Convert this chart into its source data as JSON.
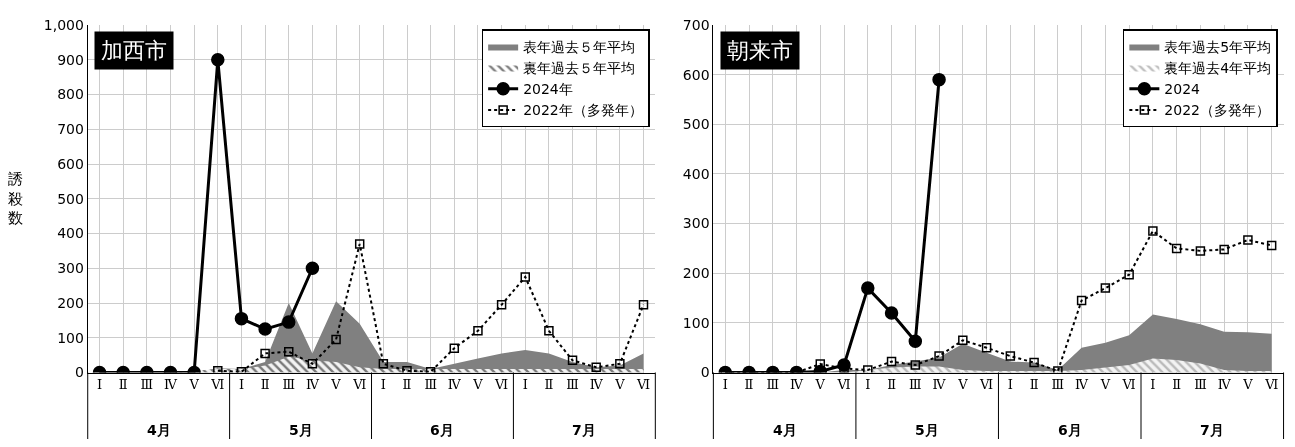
{
  "chart_data": [
    {
      "type": "line",
      "title": "加西市",
      "ylabel": "誘殺数",
      "categories": [
        "Ⅰ",
        "Ⅱ",
        "Ⅲ",
        "Ⅳ",
        "Ⅴ",
        "Ⅵ",
        "Ⅰ",
        "Ⅱ",
        "Ⅲ",
        "Ⅳ",
        "Ⅴ",
        "Ⅵ",
        "Ⅰ",
        "Ⅱ",
        "Ⅲ",
        "Ⅳ",
        "Ⅴ",
        "Ⅵ",
        "Ⅰ",
        "Ⅱ",
        "Ⅲ",
        "Ⅳ",
        "Ⅴ",
        "Ⅵ"
      ],
      "annotations": [
        "4月",
        "5月",
        "6月",
        "7月"
      ],
      "ylim": [
        0,
        1000
      ],
      "yticks": [
        0,
        100,
        200,
        300,
        400,
        500,
        600,
        700,
        800,
        900,
        {
          "value": 1000,
          "label": "1,000"
        }
      ],
      "grid": true,
      "legend": "top right",
      "series": [
        {
          "name": "表年過去５年平均",
          "type": "area",
          "color": "#808080",
          "values": [
            0,
            0,
            0,
            0,
            0,
            12,
            10,
            30,
            200,
            55,
            205,
            140,
            30,
            30,
            10,
            25,
            40,
            55,
            65,
            55,
            30,
            15,
            20,
            55
          ]
        },
        {
          "name": "裏年過去５年平均",
          "type": "area",
          "color": "#000000",
          "values": [
            0,
            0,
            0,
            0,
            5,
            10,
            10,
            20,
            45,
            35,
            30,
            15,
            10,
            10,
            10,
            10,
            10,
            10,
            10,
            10,
            10,
            10,
            10,
            10
          ]
        },
        {
          "name": "2024年",
          "color": "#000000",
          "marker": "circle",
          "line_style": "solid",
          "values": [
            0,
            0,
            0,
            0,
            0,
            900,
            155,
            125,
            145,
            300,
            null,
            null,
            null,
            null,
            null,
            null,
            null,
            null,
            null,
            null,
            null,
            null,
            null,
            null
          ]
        },
        {
          "name": "2022年（多発年）",
          "color": "#000000",
          "marker": "square",
          "line_style": "dotted",
          "values": [
            null,
            null,
            null,
            null,
            null,
            5,
            2,
            55,
            60,
            25,
            95,
            370,
            25,
            5,
            2,
            70,
            120,
            195,
            275,
            120,
            35,
            15,
            25,
            195
          ]
        }
      ]
    },
    {
      "type": "line",
      "title": "朝来市",
      "categories": [
        "Ⅰ",
        "Ⅱ",
        "Ⅲ",
        "Ⅳ",
        "Ⅴ",
        "Ⅵ",
        "Ⅰ",
        "Ⅱ",
        "Ⅲ",
        "Ⅳ",
        "Ⅴ",
        "Ⅵ",
        "Ⅰ",
        "Ⅱ",
        "Ⅲ",
        "Ⅳ",
        "Ⅴ",
        "Ⅵ",
        "Ⅰ",
        "Ⅱ",
        "Ⅲ",
        "Ⅳ",
        "Ⅴ",
        "Ⅵ"
      ],
      "annotations": [
        "4月",
        "5月",
        "6月",
        "7月"
      ],
      "ylim": [
        0,
        700
      ],
      "yticks": [
        0,
        100,
        200,
        300,
        400,
        500,
        600,
        700
      ],
      "grid": true,
      "legend": "top right",
      "series": [
        {
          "name": "表年過去5年平均",
          "type": "area",
          "color": "#808080",
          "values": [
            0,
            0,
            0,
            0,
            0,
            5,
            5,
            15,
            22,
            30,
            58,
            40,
            22,
            20,
            5,
            50,
            60,
            75,
            117,
            108,
            97,
            82,
            81,
            78
          ]
        },
        {
          "name": "裏年過去4年平均",
          "type": "area",
          "color": "#808080",
          "values": [
            0,
            0,
            0,
            0,
            0,
            0,
            5,
            10,
            12,
            12,
            5,
            3,
            3,
            3,
            3,
            5,
            10,
            15,
            28,
            25,
            18,
            5,
            3,
            3
          ]
        },
        {
          "name": "2024",
          "color": "#000000",
          "marker": "circle",
          "line_style": "solid",
          "values": [
            0,
            0,
            0,
            0,
            2,
            15,
            170,
            120,
            63,
            590,
            null,
            null,
            null,
            null,
            null,
            null,
            null,
            null,
            null,
            null,
            null,
            null,
            null,
            null
          ]
        },
        {
          "name": "2022（多発年）",
          "color": "#000000",
          "marker": "square",
          "line_style": "dotted",
          "values": [
            0,
            0,
            0,
            0,
            17,
            8,
            5,
            22,
            15,
            33,
            65,
            50,
            33,
            20,
            3,
            145,
            170,
            197,
            285,
            250,
            245,
            248,
            267,
            256
          ]
        }
      ]
    }
  ]
}
